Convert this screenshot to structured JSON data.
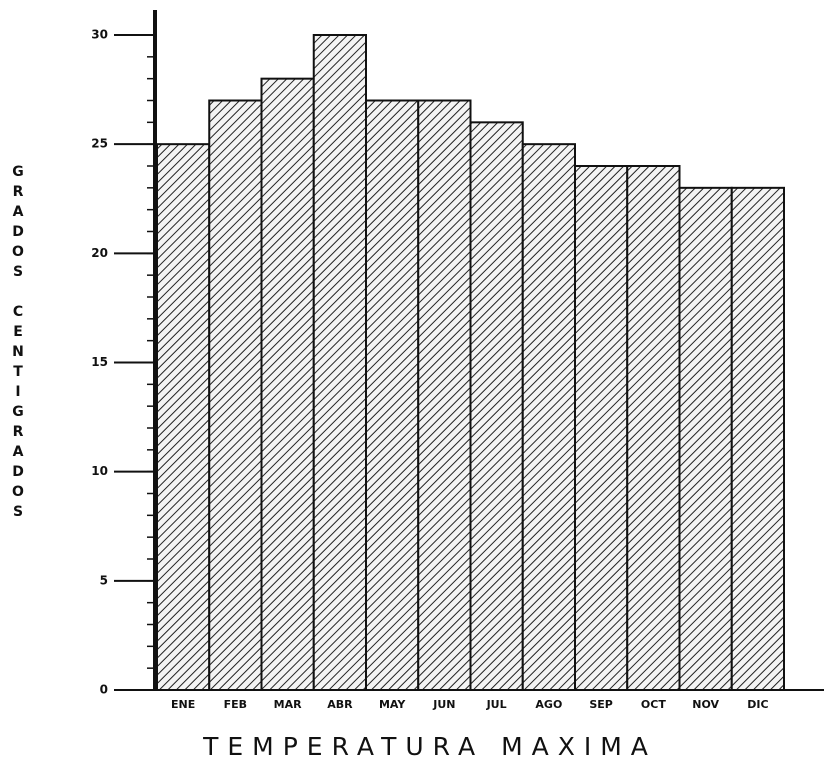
{
  "chart_data": {
    "type": "bar",
    "title": "TEMPERATURA MAXIMA",
    "ylabel": "GRADOS CENTIGRADOS",
    "categories": [
      "ENE",
      "FEB",
      "MAR",
      "ABR",
      "MAY",
      "JUN",
      "JUL",
      "AGO",
      "SEP",
      "OCT",
      "NOV",
      "DIC"
    ],
    "values": [
      25,
      27,
      28,
      30,
      27,
      27,
      26,
      25,
      24,
      24,
      23,
      23
    ],
    "color": "#111111",
    "ylim": [
      0,
      30
    ],
    "yticks": [
      0,
      5,
      10,
      15,
      20,
      25,
      30
    ],
    "grid": false
  }
}
